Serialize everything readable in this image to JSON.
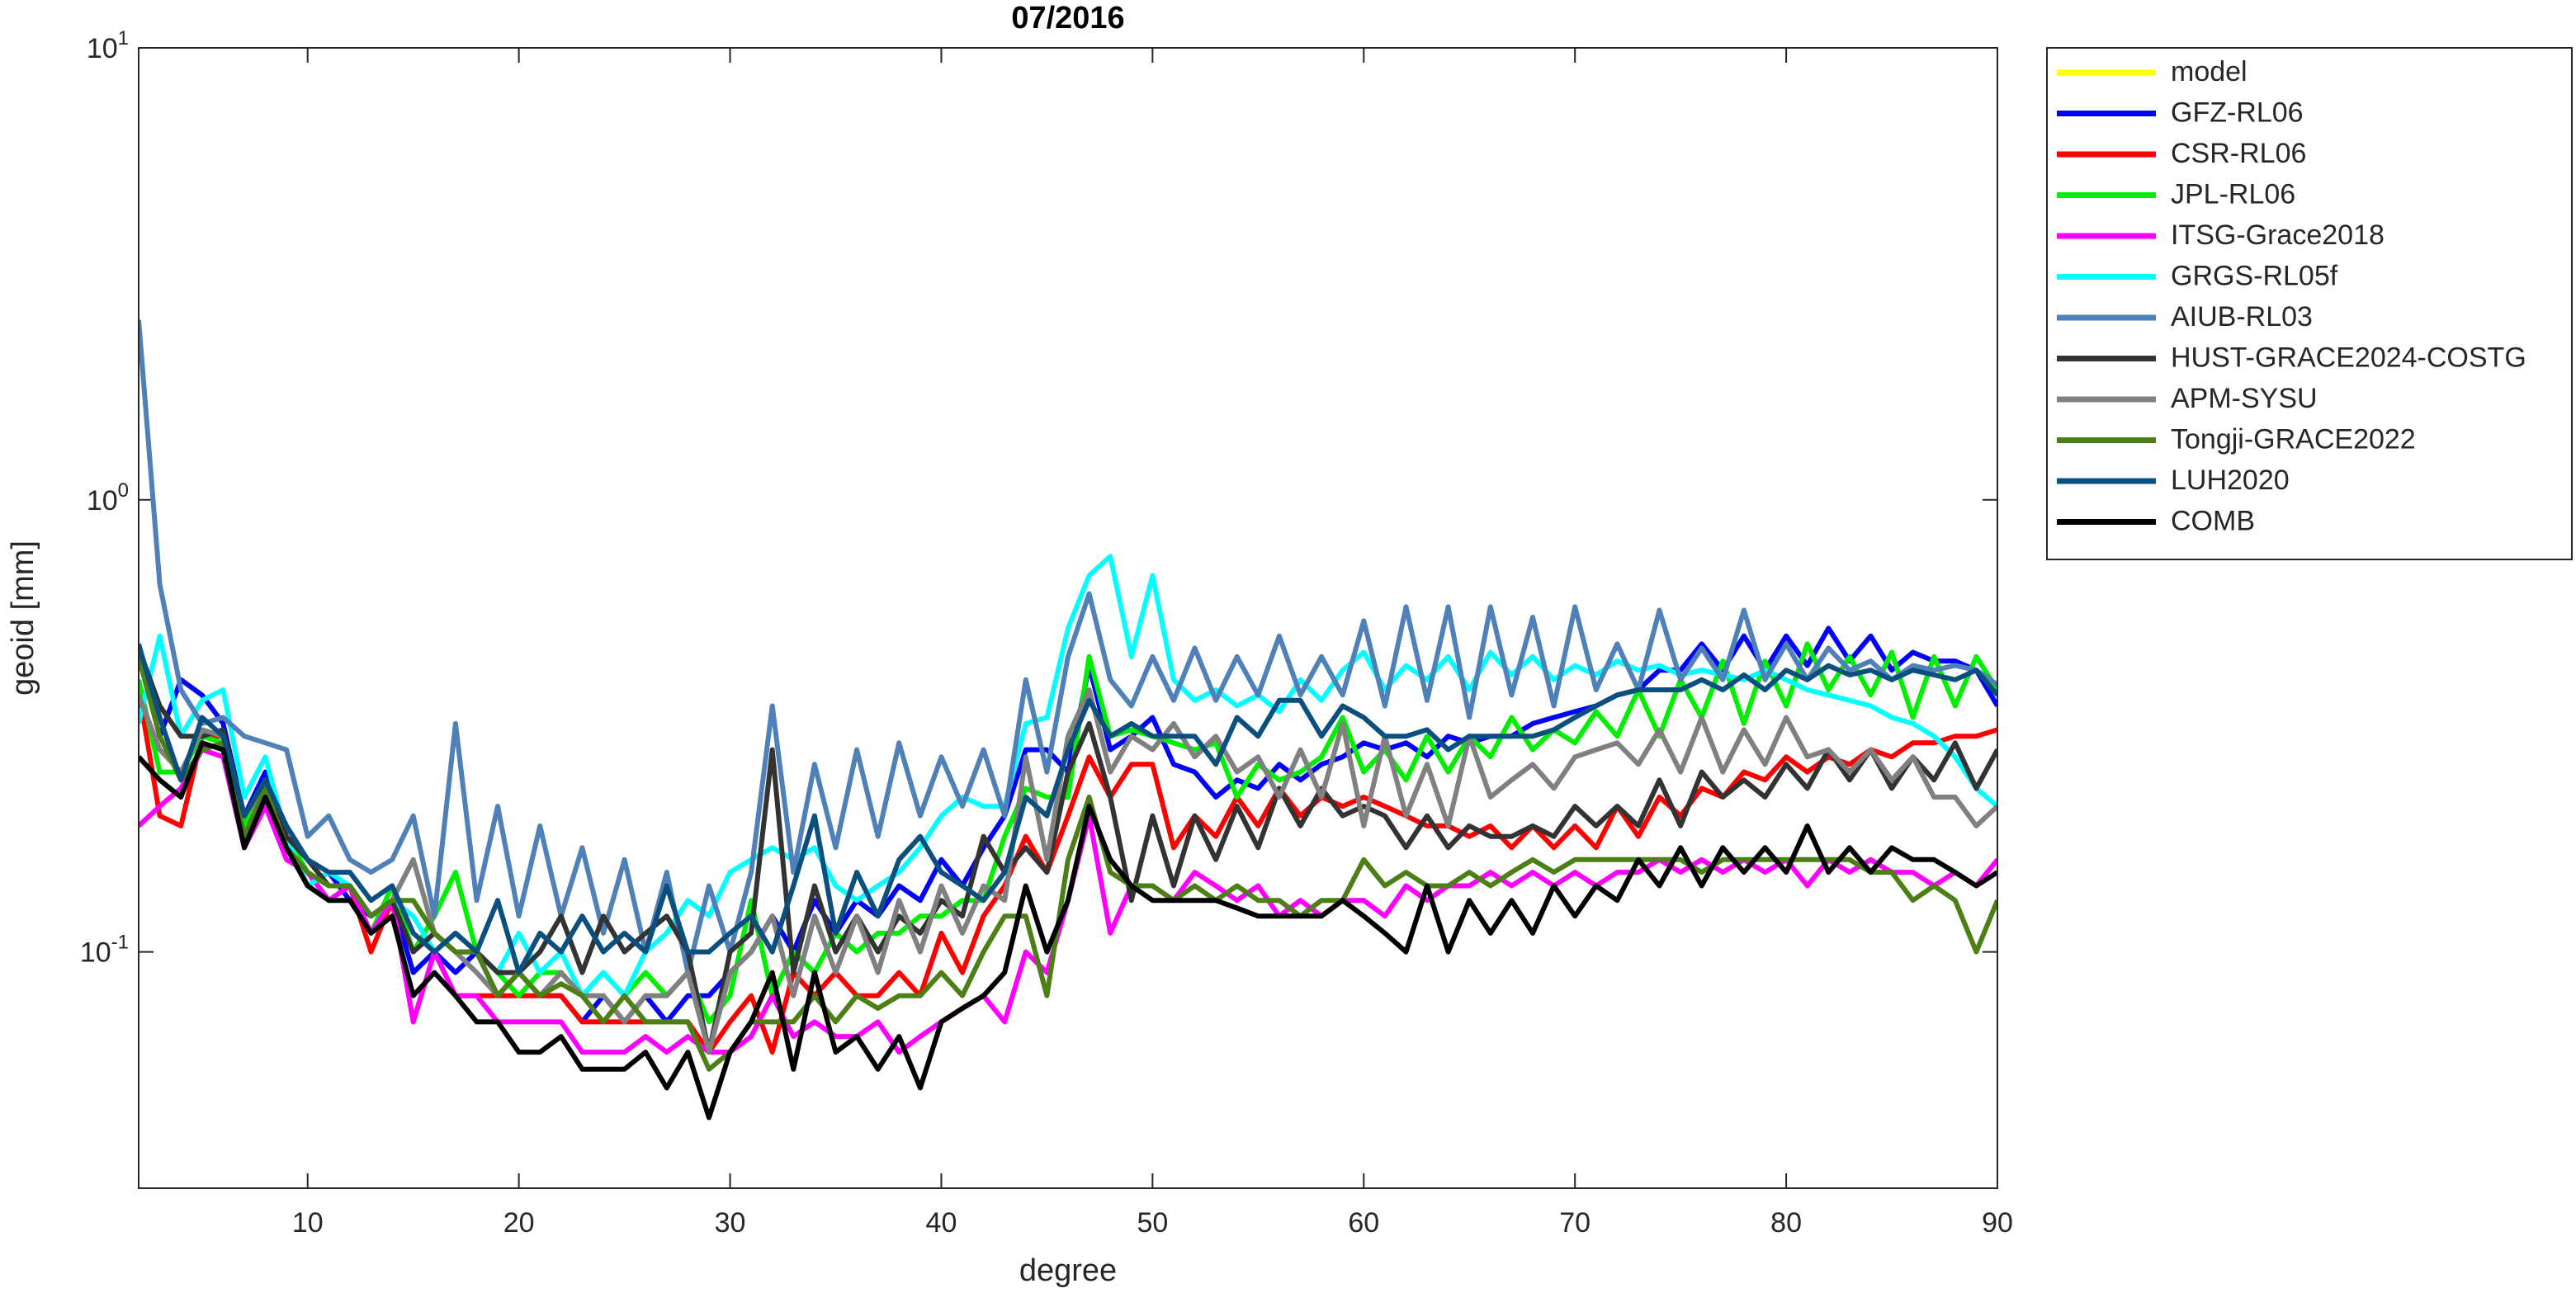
{
  "chart_data": {
    "type": "line",
    "title": "07/2016",
    "xlabel": "degree",
    "ylabel": "geoid [mm]",
    "log_y": true,
    "grid": false,
    "xlim": [
      2,
      90
    ],
    "xticks": [
      10,
      20,
      30,
      40,
      50,
      60,
      70,
      80,
      90
    ],
    "ylim": [
      0.03,
      10
    ],
    "yticks": [
      {
        "value": 0.1,
        "label": "10^-1"
      },
      {
        "value": 1,
        "label": "10^0"
      },
      {
        "value": 10,
        "label": "10^1"
      }
    ],
    "legend": "outside-right-top",
    "x": [
      2,
      3,
      4,
      5,
      6,
      7,
      8,
      9,
      10,
      11,
      12,
      13,
      14,
      15,
      16,
      17,
      18,
      19,
      20,
      21,
      22,
      23,
      24,
      25,
      26,
      27,
      28,
      29,
      30,
      31,
      32,
      33,
      34,
      35,
      36,
      37,
      38,
      39,
      40,
      41,
      42,
      43,
      44,
      45,
      46,
      47,
      48,
      49,
      50,
      51,
      52,
      53,
      54,
      55,
      56,
      57,
      58,
      59,
      60,
      61,
      62,
      63,
      64,
      65,
      66,
      67,
      68,
      69,
      70,
      71,
      72,
      73,
      74,
      75,
      76,
      77,
      78,
      79,
      80,
      81,
      82,
      83,
      84,
      85,
      86,
      87,
      88,
      89,
      90
    ],
    "series": [
      {
        "name": "model",
        "color": "#ffff00",
        "values": [
          null,
          null,
          null,
          null,
          null,
          null,
          null,
          null,
          null,
          null,
          null,
          null,
          null,
          null,
          null,
          null,
          null,
          null,
          null,
          null,
          null,
          null,
          null,
          null,
          null,
          null,
          null,
          null,
          null,
          null,
          null,
          null,
          null,
          null,
          null,
          null,
          null,
          null,
          null,
          null,
          null,
          null,
          null,
          null,
          null,
          null,
          null,
          null,
          null,
          null,
          null,
          null,
          null,
          null,
          null,
          null,
          null,
          null,
          null,
          null,
          null,
          null,
          null,
          null,
          null,
          null,
          null,
          null,
          null,
          null,
          null,
          null,
          null,
          null,
          null,
          null,
          null,
          null,
          null,
          null,
          null,
          null,
          null,
          null,
          null,
          null,
          null,
          null,
          null
        ]
      },
      {
        "name": "GFZ-RL06",
        "color": "#0000ff",
        "values": [
          0.45,
          0.3,
          0.4,
          0.37,
          0.32,
          0.2,
          0.25,
          0.17,
          0.14,
          0.15,
          0.13,
          0.12,
          0.13,
          0.09,
          0.1,
          0.09,
          0.1,
          0.08,
          0.09,
          0.08,
          0.08,
          0.07,
          0.08,
          0.07,
          0.08,
          0.07,
          0.08,
          0.08,
          0.09,
          0.1,
          0.12,
          0.1,
          0.13,
          0.11,
          0.13,
          0.12,
          0.14,
          0.13,
          0.16,
          0.14,
          0.17,
          0.2,
          0.28,
          0.28,
          0.25,
          0.43,
          0.28,
          0.3,
          0.33,
          0.26,
          0.25,
          0.22,
          0.24,
          0.23,
          0.26,
          0.24,
          0.26,
          0.27,
          0.29,
          0.28,
          0.29,
          0.27,
          0.3,
          0.29,
          0.3,
          0.3,
          0.32,
          0.33,
          0.34,
          0.35,
          0.37,
          0.38,
          0.42,
          0.42,
          0.48,
          0.42,
          0.5,
          0.42,
          0.5,
          0.43,
          0.52,
          0.44,
          0.5,
          0.42,
          0.46,
          0.44,
          0.44,
          0.42,
          0.35
        ]
      },
      {
        "name": "CSR-RL06",
        "color": "#ff0000",
        "values": [
          0.38,
          0.2,
          0.19,
          0.3,
          0.3,
          0.17,
          0.23,
          0.17,
          0.15,
          0.13,
          0.14,
          0.1,
          0.13,
          0.07,
          0.1,
          0.08,
          0.08,
          0.08,
          0.08,
          0.08,
          0.08,
          0.07,
          0.07,
          0.07,
          0.07,
          0.07,
          0.07,
          0.06,
          0.07,
          0.08,
          0.06,
          0.09,
          0.08,
          0.09,
          0.08,
          0.08,
          0.09,
          0.08,
          0.11,
          0.09,
          0.12,
          0.14,
          0.18,
          0.15,
          0.2,
          0.27,
          0.22,
          0.26,
          0.26,
          0.17,
          0.2,
          0.18,
          0.22,
          0.19,
          0.23,
          0.2,
          0.22,
          0.21,
          0.22,
          0.21,
          0.2,
          0.19,
          0.19,
          0.18,
          0.19,
          0.17,
          0.19,
          0.17,
          0.19,
          0.17,
          0.21,
          0.18,
          0.22,
          0.2,
          0.23,
          0.22,
          0.25,
          0.24,
          0.27,
          0.25,
          0.27,
          0.26,
          0.28,
          0.27,
          0.29,
          0.29,
          0.3,
          0.3,
          0.31
        ]
      },
      {
        "name": "JPL-RL06",
        "color": "#00ee00",
        "values": [
          0.4,
          0.25,
          0.25,
          0.3,
          0.29,
          0.19,
          0.24,
          0.18,
          0.15,
          0.13,
          0.14,
          0.11,
          0.14,
          0.1,
          0.12,
          0.15,
          0.1,
          0.09,
          0.08,
          0.09,
          0.09,
          0.08,
          0.09,
          0.08,
          0.09,
          0.08,
          0.09,
          0.07,
          0.08,
          0.13,
          0.08,
          0.1,
          0.09,
          0.11,
          0.1,
          0.11,
          0.11,
          0.12,
          0.12,
          0.13,
          0.13,
          0.18,
          0.23,
          0.22,
          0.22,
          0.45,
          0.3,
          0.31,
          0.3,
          0.29,
          0.28,
          0.29,
          0.22,
          0.26,
          0.24,
          0.25,
          0.27,
          0.33,
          0.25,
          0.28,
          0.24,
          0.3,
          0.25,
          0.3,
          0.27,
          0.33,
          0.28,
          0.31,
          0.29,
          0.34,
          0.3,
          0.38,
          0.3,
          0.4,
          0.33,
          0.44,
          0.32,
          0.44,
          0.35,
          0.48,
          0.38,
          0.45,
          0.37,
          0.46,
          0.33,
          0.45,
          0.35,
          0.45,
          0.38
        ]
      },
      {
        "name": "ITSG-Grace2018",
        "color": "#ff00ff",
        "values": [
          0.19,
          0.21,
          0.23,
          0.28,
          0.27,
          0.17,
          0.21,
          0.16,
          0.15,
          0.13,
          0.14,
          0.11,
          0.13,
          0.07,
          0.1,
          0.08,
          0.08,
          0.07,
          0.07,
          0.07,
          0.07,
          0.06,
          0.06,
          0.06,
          0.065,
          0.06,
          0.065,
          0.06,
          0.06,
          0.065,
          0.08,
          0.065,
          0.07,
          0.065,
          0.065,
          0.07,
          0.06,
          0.065,
          0.07,
          0.075,
          0.08,
          0.07,
          0.1,
          0.09,
          0.13,
          0.2,
          0.11,
          0.14,
          0.14,
          0.13,
          0.15,
          0.14,
          0.13,
          0.14,
          0.12,
          0.13,
          0.12,
          0.13,
          0.13,
          0.12,
          0.14,
          0.13,
          0.14,
          0.14,
          0.15,
          0.14,
          0.15,
          0.14,
          0.15,
          0.14,
          0.15,
          0.15,
          0.16,
          0.15,
          0.16,
          0.15,
          0.16,
          0.15,
          0.16,
          0.14,
          0.16,
          0.15,
          0.16,
          0.15,
          0.15,
          0.14,
          0.15,
          0.14,
          0.16
        ]
      },
      {
        "name": "GRGS-RL05f",
        "color": "#00ffff",
        "values": [
          0.32,
          0.5,
          0.3,
          0.36,
          0.38,
          0.22,
          0.27,
          0.18,
          0.14,
          0.15,
          0.14,
          0.12,
          0.13,
          0.12,
          0.1,
          0.11,
          0.1,
          0.09,
          0.11,
          0.09,
          0.1,
          0.08,
          0.09,
          0.08,
          0.1,
          0.11,
          0.13,
          0.12,
          0.15,
          0.16,
          0.17,
          0.16,
          0.17,
          0.14,
          0.13,
          0.14,
          0.15,
          0.17,
          0.2,
          0.22,
          0.21,
          0.21,
          0.32,
          0.33,
          0.52,
          0.68,
          0.75,
          0.45,
          0.68,
          0.4,
          0.36,
          0.38,
          0.35,
          0.37,
          0.34,
          0.4,
          0.36,
          0.42,
          0.46,
          0.38,
          0.43,
          0.4,
          0.45,
          0.38,
          0.46,
          0.41,
          0.45,
          0.4,
          0.43,
          0.41,
          0.44,
          0.42,
          0.43,
          0.41,
          0.42,
          0.41,
          0.4,
          0.42,
          0.4,
          0.38,
          0.37,
          0.36,
          0.35,
          0.33,
          0.32,
          0.3,
          0.27,
          0.23,
          0.21
        ]
      },
      {
        "name": "AIUB-RL03",
        "color": "#4f81b8",
        "values": [
          2.5,
          0.65,
          0.38,
          0.32,
          0.33,
          0.3,
          0.29,
          0.28,
          0.18,
          0.2,
          0.16,
          0.15,
          0.16,
          0.2,
          0.12,
          0.32,
          0.13,
          0.21,
          0.12,
          0.19,
          0.12,
          0.17,
          0.11,
          0.16,
          0.1,
          0.15,
          0.09,
          0.14,
          0.1,
          0.15,
          0.35,
          0.15,
          0.26,
          0.17,
          0.28,
          0.18,
          0.29,
          0.2,
          0.27,
          0.21,
          0.28,
          0.2,
          0.4,
          0.25,
          0.45,
          0.62,
          0.4,
          0.35,
          0.45,
          0.36,
          0.47,
          0.36,
          0.45,
          0.37,
          0.5,
          0.37,
          0.45,
          0.37,
          0.54,
          0.35,
          0.58,
          0.36,
          0.58,
          0.33,
          0.58,
          0.37,
          0.55,
          0.35,
          0.58,
          0.38,
          0.48,
          0.38,
          0.57,
          0.4,
          0.47,
          0.4,
          0.57,
          0.4,
          0.48,
          0.4,
          0.47,
          0.42,
          0.44,
          0.4,
          0.43,
          0.42,
          0.43,
          0.42,
          0.39
        ]
      },
      {
        "name": "HUST-GRACE2024-COSTG",
        "color": "#333333",
        "values": [
          0.47,
          0.35,
          0.3,
          0.3,
          0.31,
          0.2,
          0.24,
          0.18,
          0.16,
          0.14,
          0.14,
          0.12,
          0.13,
          0.1,
          0.11,
          0.1,
          0.1,
          0.09,
          0.09,
          0.1,
          0.12,
          0.09,
          0.12,
          0.1,
          0.11,
          0.12,
          0.1,
          0.06,
          0.1,
          0.11,
          0.28,
          0.09,
          0.14,
          0.1,
          0.12,
          0.1,
          0.12,
          0.11,
          0.13,
          0.12,
          0.18,
          0.15,
          0.17,
          0.15,
          0.25,
          0.32,
          0.22,
          0.13,
          0.2,
          0.14,
          0.2,
          0.16,
          0.21,
          0.17,
          0.23,
          0.19,
          0.23,
          0.2,
          0.21,
          0.2,
          0.17,
          0.2,
          0.17,
          0.19,
          0.18,
          0.18,
          0.19,
          0.18,
          0.21,
          0.19,
          0.21,
          0.19,
          0.24,
          0.19,
          0.25,
          0.22,
          0.24,
          0.22,
          0.26,
          0.23,
          0.28,
          0.24,
          0.28,
          0.23,
          0.27,
          0.24,
          0.29,
          0.23,
          0.28
        ]
      },
      {
        "name": "APM-SYSU",
        "color": "#808080",
        "values": [
          0.37,
          0.28,
          0.25,
          0.31,
          0.3,
          0.2,
          0.23,
          0.17,
          0.15,
          0.14,
          0.14,
          0.12,
          0.13,
          0.16,
          0.11,
          0.1,
          0.09,
          0.08,
          0.09,
          0.08,
          0.09,
          0.08,
          0.08,
          0.07,
          0.08,
          0.08,
          0.09,
          0.06,
          0.09,
          0.1,
          0.12,
          0.08,
          0.12,
          0.09,
          0.12,
          0.09,
          0.13,
          0.1,
          0.14,
          0.11,
          0.14,
          0.13,
          0.27,
          0.16,
          0.3,
          0.38,
          0.25,
          0.3,
          0.28,
          0.32,
          0.27,
          0.3,
          0.25,
          0.27,
          0.22,
          0.28,
          0.22,
          0.32,
          0.19,
          0.3,
          0.2,
          0.26,
          0.19,
          0.3,
          0.22,
          0.24,
          0.26,
          0.23,
          0.27,
          0.28,
          0.29,
          0.26,
          0.31,
          0.25,
          0.33,
          0.25,
          0.31,
          0.26,
          0.33,
          0.27,
          0.28,
          0.25,
          0.28,
          0.24,
          0.27,
          0.22,
          0.22,
          0.19,
          0.21
        ]
      },
      {
        "name": "Tongji-GRACE2022",
        "color": "#4d7f17",
        "values": [
          0.45,
          0.3,
          0.24,
          0.28,
          0.29,
          0.18,
          0.23,
          0.17,
          0.15,
          0.14,
          0.14,
          0.12,
          0.13,
          0.13,
          0.11,
          0.1,
          0.1,
          0.08,
          0.09,
          0.08,
          0.085,
          0.08,
          0.07,
          0.08,
          0.07,
          0.07,
          0.07,
          0.055,
          0.06,
          0.07,
          0.07,
          0.07,
          0.08,
          0.07,
          0.08,
          0.075,
          0.08,
          0.08,
          0.09,
          0.08,
          0.1,
          0.12,
          0.12,
          0.08,
          0.16,
          0.22,
          0.15,
          0.14,
          0.14,
          0.13,
          0.14,
          0.13,
          0.14,
          0.13,
          0.13,
          0.12,
          0.13,
          0.13,
          0.16,
          0.14,
          0.15,
          0.14,
          0.14,
          0.15,
          0.14,
          0.15,
          0.16,
          0.15,
          0.16,
          0.16,
          0.16,
          0.16,
          0.16,
          0.16,
          0.15,
          0.16,
          0.16,
          0.16,
          0.16,
          0.16,
          0.16,
          0.16,
          0.15,
          0.15,
          0.13,
          0.14,
          0.13,
          0.1,
          0.13
        ]
      },
      {
        "name": "LUH2020",
        "color": "#0b4f7f",
        "values": [
          0.48,
          0.33,
          0.24,
          0.33,
          0.3,
          0.2,
          0.24,
          0.19,
          0.16,
          0.15,
          0.15,
          0.13,
          0.14,
          0.11,
          0.1,
          0.11,
          0.1,
          0.13,
          0.09,
          0.11,
          0.1,
          0.12,
          0.1,
          0.11,
          0.1,
          0.14,
          0.1,
          0.1,
          0.11,
          0.12,
          0.1,
          0.14,
          0.2,
          0.11,
          0.15,
          0.12,
          0.16,
          0.18,
          0.15,
          0.14,
          0.13,
          0.15,
          0.22,
          0.2,
          0.28,
          0.36,
          0.3,
          0.32,
          0.3,
          0.3,
          0.3,
          0.26,
          0.33,
          0.3,
          0.36,
          0.36,
          0.3,
          0.35,
          0.33,
          0.3,
          0.3,
          0.31,
          0.28,
          0.3,
          0.3,
          0.3,
          0.3,
          0.31,
          0.33,
          0.35,
          0.37,
          0.38,
          0.38,
          0.38,
          0.4,
          0.38,
          0.41,
          0.38,
          0.42,
          0.4,
          0.43,
          0.41,
          0.42,
          0.4,
          0.42,
          0.41,
          0.4,
          0.42,
          0.37
        ]
      },
      {
        "name": "COMB",
        "color": "#000000",
        "values": [
          0.27,
          0.24,
          0.22,
          0.29,
          0.28,
          0.17,
          0.22,
          0.17,
          0.14,
          0.13,
          0.13,
          0.11,
          0.12,
          0.08,
          0.09,
          0.08,
          0.07,
          0.07,
          0.06,
          0.06,
          0.065,
          0.055,
          0.055,
          0.055,
          0.06,
          0.05,
          0.06,
          0.043,
          0.06,
          0.07,
          0.09,
          0.055,
          0.09,
          0.06,
          0.065,
          0.055,
          0.065,
          0.05,
          0.07,
          0.075,
          0.08,
          0.09,
          0.14,
          0.1,
          0.13,
          0.21,
          0.16,
          0.14,
          0.13,
          0.13,
          0.13,
          0.13,
          0.125,
          0.12,
          0.12,
          0.12,
          0.12,
          0.13,
          0.12,
          0.11,
          0.1,
          0.14,
          0.1,
          0.13,
          0.11,
          0.13,
          0.11,
          0.14,
          0.12,
          0.14,
          0.13,
          0.16,
          0.14,
          0.17,
          0.14,
          0.17,
          0.15,
          0.17,
          0.15,
          0.19,
          0.15,
          0.17,
          0.15,
          0.17,
          0.16,
          0.16,
          0.15,
          0.14,
          0.15
        ]
      }
    ]
  }
}
